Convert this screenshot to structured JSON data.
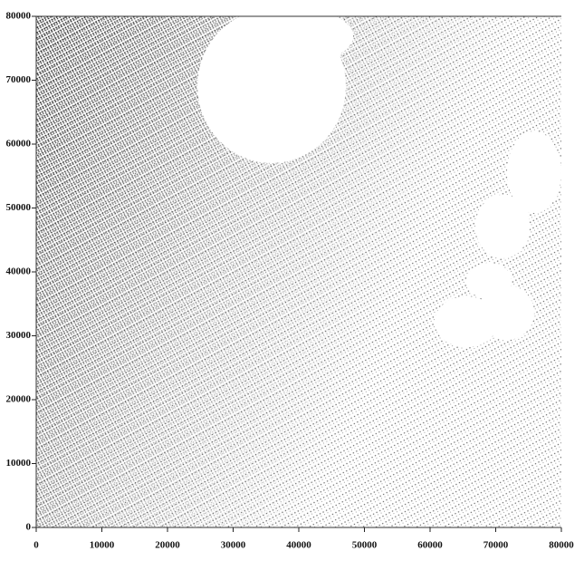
{
  "chart_data": {
    "type": "scatter",
    "xlim": [
      0,
      80000
    ],
    "ylim": [
      0,
      80000
    ],
    "xticks": [
      0,
      10000,
      20000,
      30000,
      40000,
      50000,
      60000,
      70000,
      80000
    ],
    "yticks": [
      0,
      10000,
      20000,
      30000,
      40000,
      50000,
      60000,
      70000,
      80000
    ],
    "color": "#222"
  }
}
